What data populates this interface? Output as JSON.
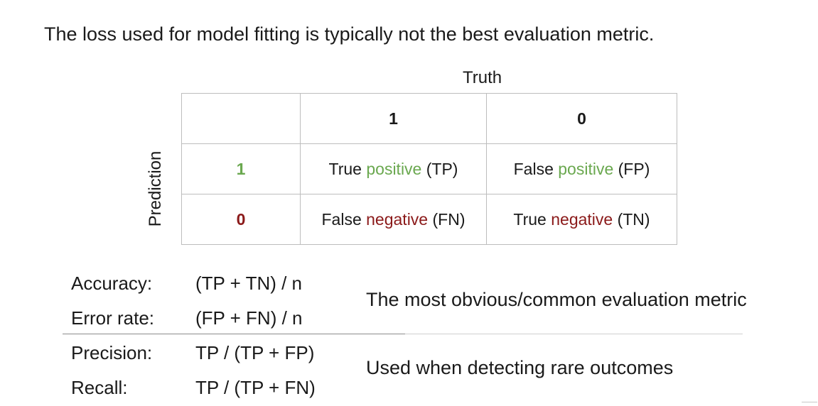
{
  "title": "The loss used for model fitting is typically not the best evaluation metric.",
  "matrix": {
    "truth_label": "Truth",
    "prediction_label": "Prediction",
    "truth_headers": [
      "1",
      "0"
    ],
    "rows": [
      {
        "pred": "1",
        "cells": [
          {
            "pre": "True ",
            "word": "positive",
            "post": " (TP)"
          },
          {
            "pre": "False ",
            "word": "positive",
            "post": " (FP)"
          }
        ]
      },
      {
        "pred": "0",
        "cells": [
          {
            "pre": "False ",
            "word": "negative",
            "post": " (FN)"
          },
          {
            "pre": "True ",
            "word": "negative",
            "post": " (TN)"
          }
        ]
      }
    ]
  },
  "metrics": [
    {
      "name": "Accuracy:",
      "formula": "(TP + TN) / n"
    },
    {
      "name": "Error rate:",
      "formula": "(FP + FN) / n"
    },
    {
      "name": "Precision:",
      "formula": "TP / (TP + FP)"
    },
    {
      "name": "Recall:",
      "formula": "TP / (TP + FN)"
    }
  ],
  "descriptions": [
    "The most obvious/common evaluation metric",
    "Used when detecting rare outcomes"
  ],
  "colors": {
    "positive": "#6aa84f",
    "negative": "#8b1a1a"
  }
}
